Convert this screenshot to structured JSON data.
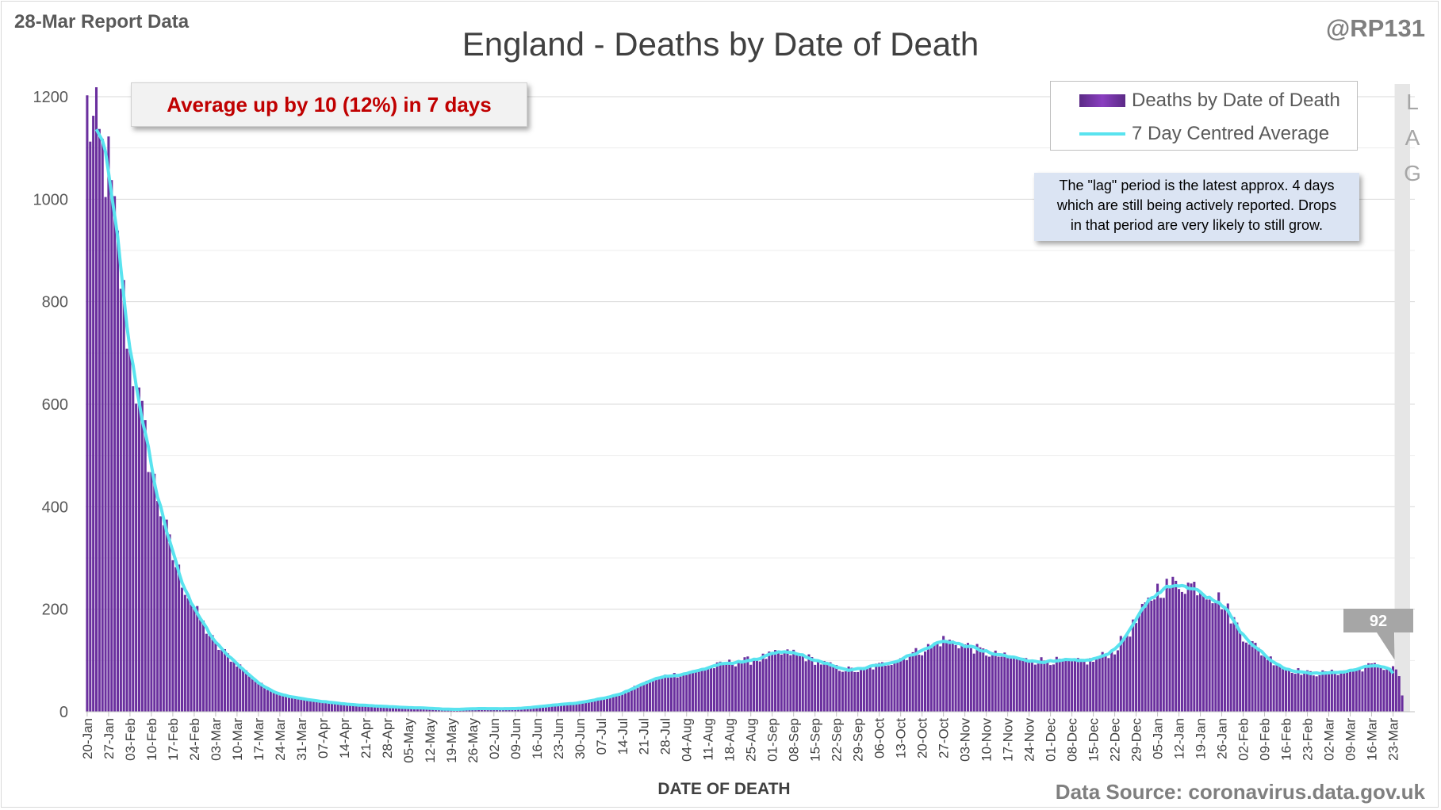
{
  "header": {
    "report_date": "28-Mar Report Data",
    "handle": "@RP131"
  },
  "summary_callout": "Average up by 10 (12%) in 7 days",
  "legend": {
    "bars": "Deaths by Date of Death",
    "line": "7 Day Centred Average"
  },
  "lag_note": {
    "line1": "The \"lag\" period is the latest approx. 4 days",
    "line2": "which are still being actively reported. Drops",
    "line3": "in that period are very likely to still grow."
  },
  "lag_letters": [
    "L",
    "A",
    "G"
  ],
  "last_value_callout": "92",
  "footer": {
    "source": "Data Source: coronavirus.data.gov.uk"
  },
  "colors": {
    "bars": "#6a2f9e",
    "average_line": "#59e3ef",
    "lag_band": "#e6e6e6",
    "callout": "#a6a6a6",
    "summary_text": "#c00000",
    "lag_note_bg": "#dbe4f3"
  },
  "chart_data": {
    "type": "bar",
    "title": "England - Deaths by Date of Death",
    "xlabel": "DATE OF DEATH",
    "ylabel": "",
    "ylim": [
      0,
      1200
    ],
    "yticks": [
      0,
      200,
      400,
      600,
      800,
      1000,
      1200
    ],
    "grid": true,
    "legend_position": "top-right",
    "lag_period_days": 4,
    "x_tick_labels": [
      "20-Jan",
      "27-Jan",
      "03-Feb",
      "10-Feb",
      "17-Feb",
      "24-Feb",
      "03-Mar",
      "10-Mar",
      "17-Mar",
      "24-Mar",
      "31-Mar",
      "07-Apr",
      "14-Apr",
      "21-Apr",
      "28-Apr",
      "05-May",
      "12-May",
      "19-May",
      "26-May",
      "02-Jun",
      "09-Jun",
      "16-Jun",
      "23-Jun",
      "30-Jun",
      "07-Jul",
      "14-Jul",
      "21-Jul",
      "28-Jul",
      "04-Aug",
      "11-Aug",
      "18-Aug",
      "25-Aug",
      "01-Sep",
      "08-Sep",
      "15-Sep",
      "22-Sep",
      "29-Sep",
      "06-Oct",
      "13-Oct",
      "20-Oct",
      "27-Oct",
      "03-Nov",
      "10-Nov",
      "17-Nov",
      "24-Nov",
      "01-Dec",
      "08-Dec",
      "15-Dec",
      "22-Dec",
      "29-Dec",
      "05-Jan",
      "12-Jan",
      "19-Jan",
      "26-Jan",
      "02-Feb",
      "09-Feb",
      "16-Feb",
      "23-Feb",
      "02-Mar",
      "09-Mar",
      "16-Mar",
      "23-Mar"
    ],
    "weekly_anchor_values": [
      1170,
      1050,
      700,
      470,
      300,
      200,
      130,
      95,
      55,
      35,
      25,
      20,
      15,
      12,
      10,
      8,
      7,
      4,
      6,
      6,
      6,
      9,
      14,
      18,
      25,
      35,
      55,
      70,
      75,
      85,
      95,
      100,
      110,
      115,
      100,
      85,
      80,
      90,
      105,
      120,
      140,
      130,
      115,
      105,
      100,
      100,
      95,
      100,
      120,
      175,
      240,
      250,
      245,
      215,
      150,
      110,
      85,
      75,
      75,
      80,
      90,
      85
    ],
    "series": [
      {
        "name": "Deaths by Date of Death",
        "kind": "bar",
        "noise_amplitude": 0.09
      },
      {
        "name": "7 Day Centred Average",
        "kind": "line",
        "window_days": 7
      }
    ],
    "last_average_value": 92
  }
}
